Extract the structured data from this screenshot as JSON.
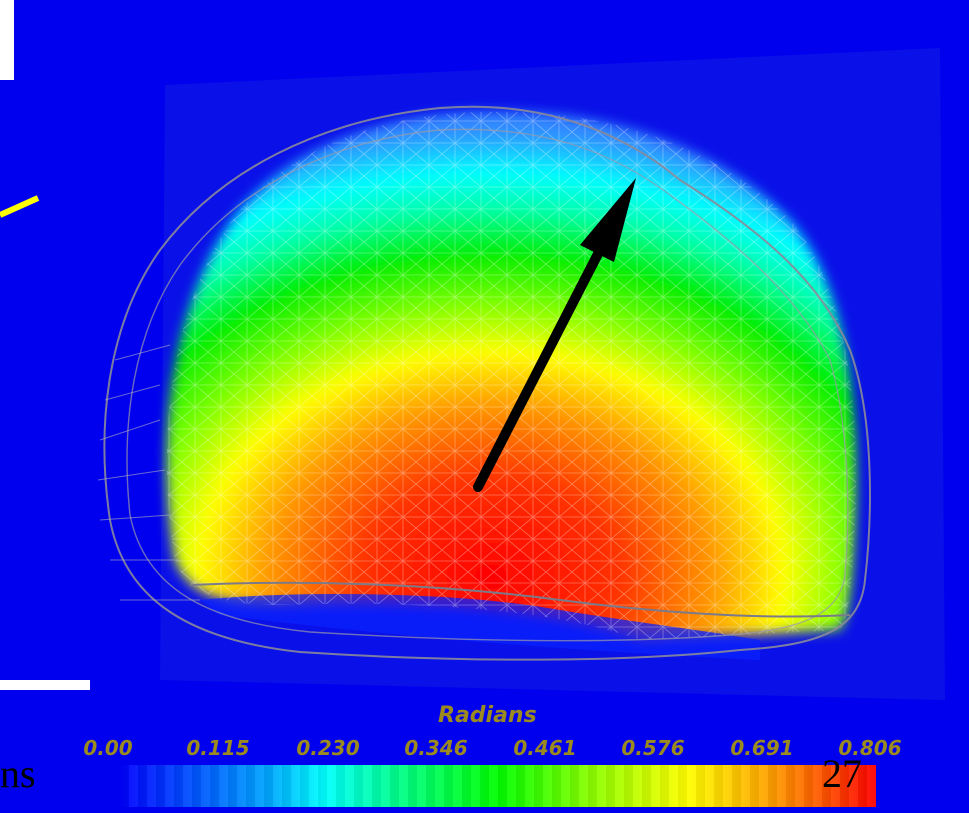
{
  "slide": {
    "fragment_text": "ns",
    "page_number": "27"
  },
  "colormap": {
    "title": "Radians",
    "ticks": [
      "0.00",
      "0.115",
      "0.230",
      "0.346",
      "0.461",
      "0.576",
      "0.691",
      "0.806"
    ]
  },
  "colors": {
    "background_blue": "#0000ee",
    "legend_text": "#9a8a20",
    "arrow": "#000000"
  }
}
